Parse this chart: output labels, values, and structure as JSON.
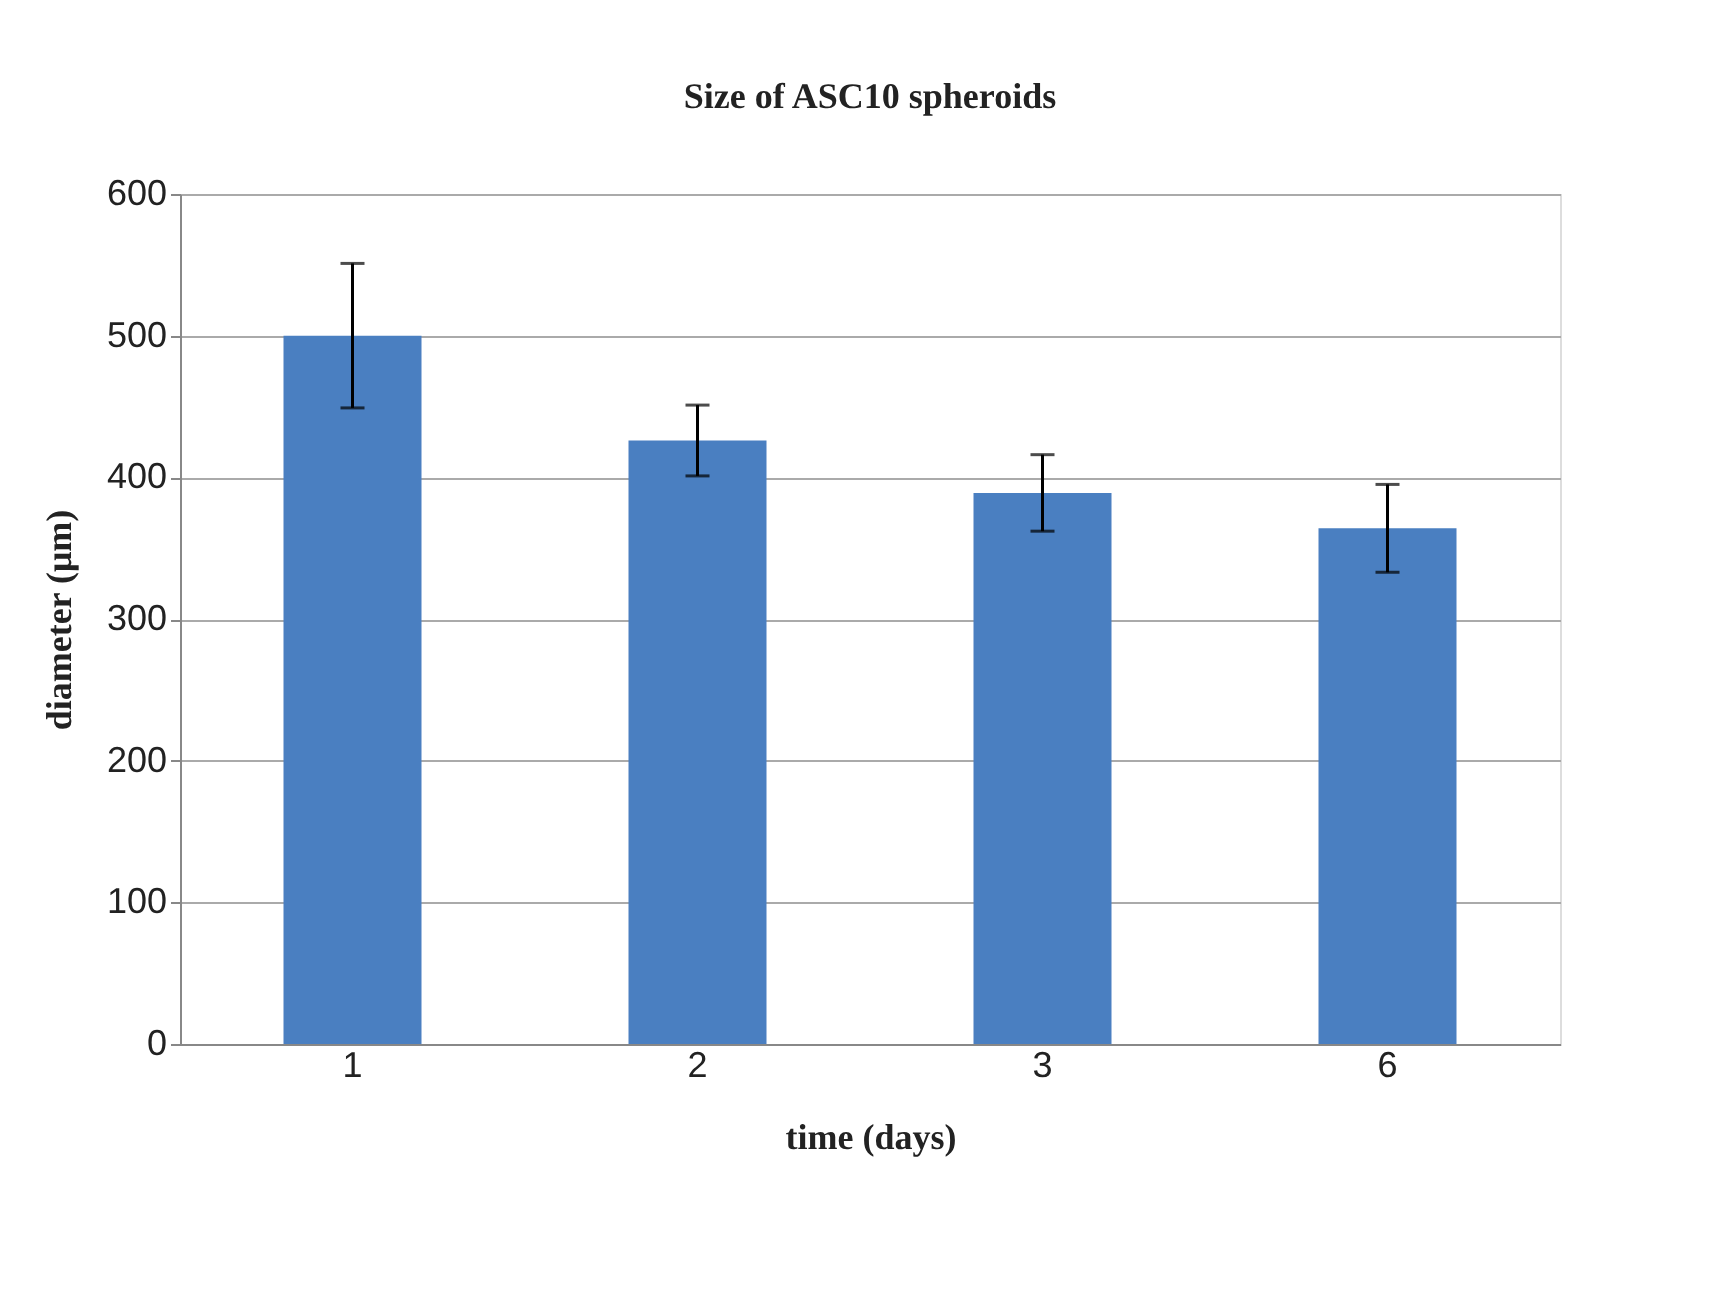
{
  "chart_data": {
    "type": "bar",
    "title": "Size of ASC10 spheroids",
    "xlabel": "time (days)",
    "ylabel": "diameter (μm)",
    "categories": [
      "1",
      "2",
      "3",
      "6"
    ],
    "values": [
      500,
      426,
      389,
      364
    ],
    "errors": [
      51,
      25,
      27,
      31
    ],
    "color": "#4a7fc1",
    "ylim": [
      0,
      600
    ],
    "yticks": [
      0,
      100,
      200,
      300,
      400,
      500,
      600
    ],
    "grid": "y"
  }
}
